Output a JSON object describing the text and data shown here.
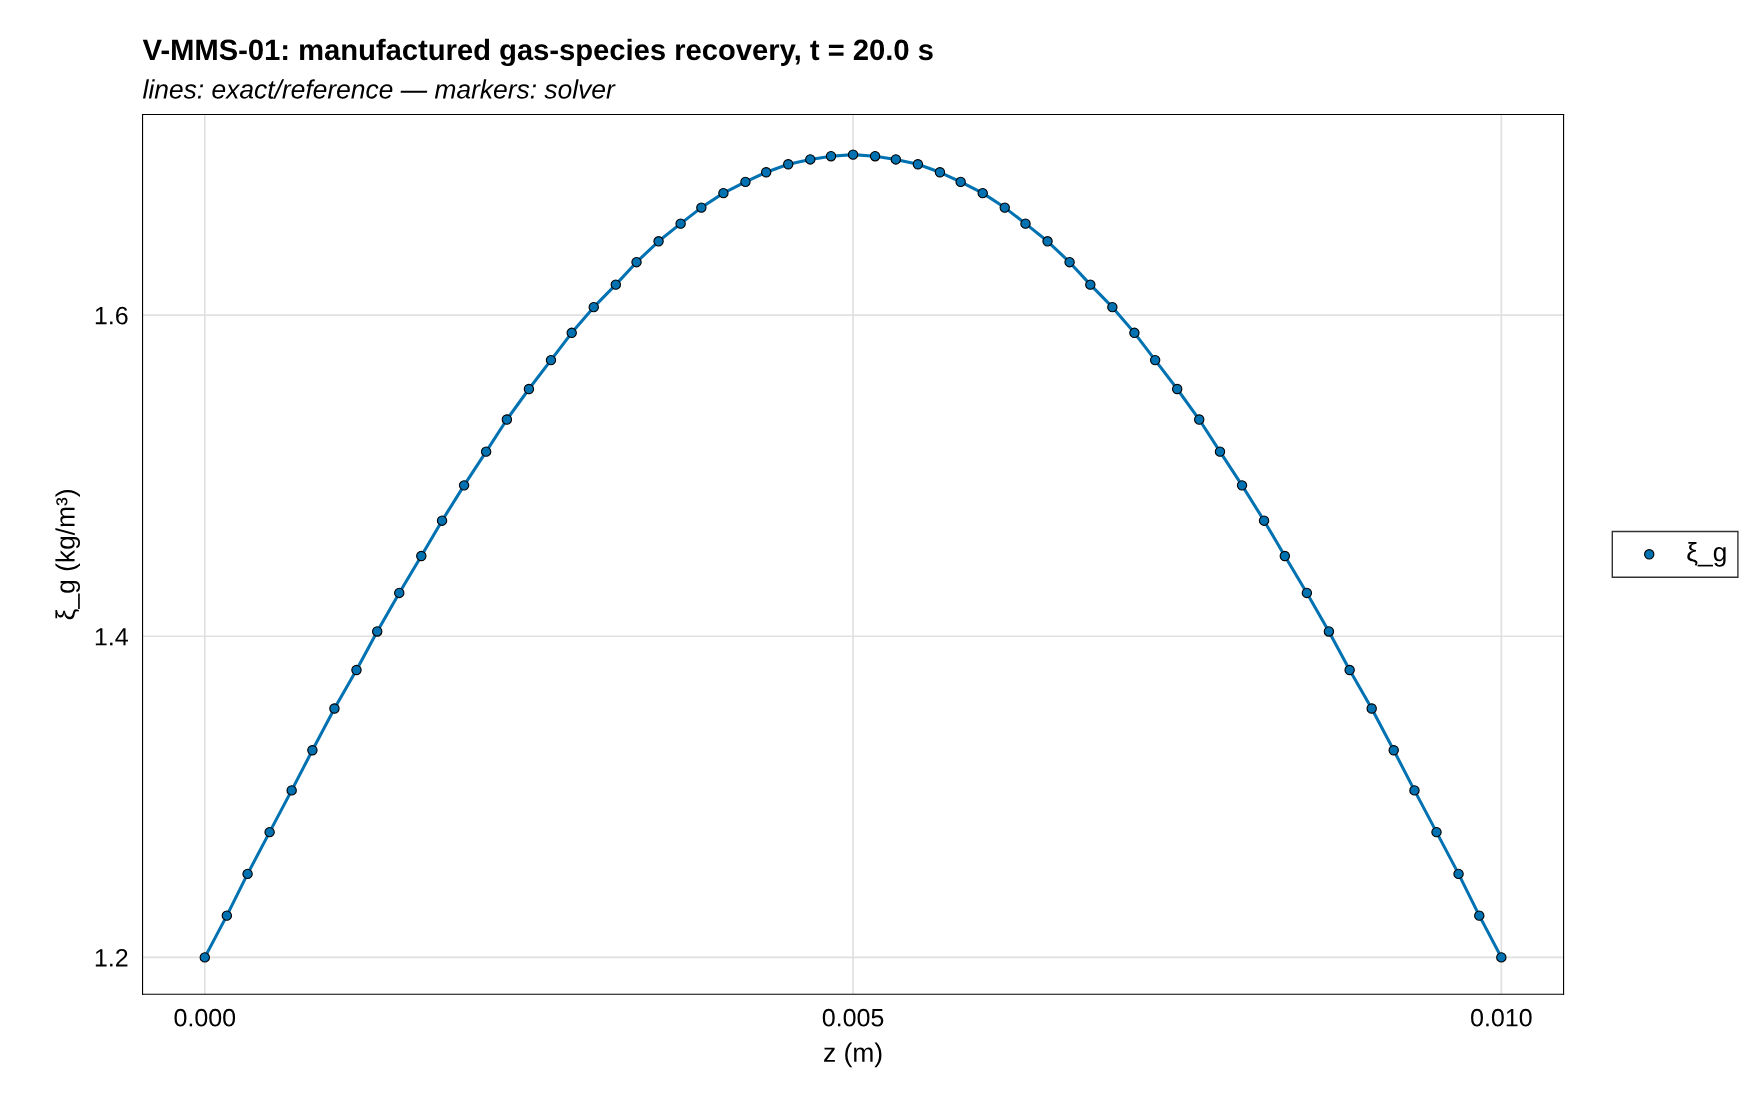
{
  "chart_data": {
    "type": "line",
    "title": "V-MMS-01: manufactured gas-species recovery, t = 20.0 s",
    "subtitle": "lines: exact/reference — markers: solver",
    "xlabel": "z (m)",
    "ylabel": "ξ_g (kg/m³)",
    "x": [
      0,
      0.00017,
      0.00033,
      0.0005,
      0.00067,
      0.00083,
      0.001,
      0.00117,
      0.00133,
      0.0015,
      0.00167,
      0.00183,
      0.002,
      0.00217,
      0.00233,
      0.0025,
      0.00267,
      0.00283,
      0.003,
      0.00317,
      0.00333,
      0.0035,
      0.00367,
      0.00383,
      0.004,
      0.00417,
      0.00433,
      0.0045,
      0.00467,
      0.00483,
      0.005,
      0.00517,
      0.00533,
      0.0055,
      0.00567,
      0.00583,
      0.006,
      0.00617,
      0.00633,
      0.0065,
      0.00667,
      0.00683,
      0.007,
      0.00717,
      0.00733,
      0.0075,
      0.00767,
      0.00783,
      0.008,
      0.00817,
      0.00833,
      0.0085,
      0.00867,
      0.00883,
      0.009,
      0.00917,
      0.00933,
      0.0095,
      0.00967,
      0.00983,
      0.01
    ],
    "series": [
      {
        "color": "#0072b2",
        "line_style": "solid",
        "values": [
          1.2,
          1.226,
          1.252,
          1.278,
          1.304,
          1.329,
          1.355,
          1.379,
          1.403,
          1.427,
          1.45,
          1.472,
          1.494,
          1.515,
          1.535,
          1.554,
          1.572,
          1.589,
          1.605,
          1.619,
          1.633,
          1.646,
          1.657,
          1.667,
          1.676,
          1.683,
          1.689,
          1.694,
          1.697,
          1.699,
          1.7,
          1.699,
          1.697,
          1.694,
          1.689,
          1.683,
          1.676,
          1.667,
          1.657,
          1.646,
          1.633,
          1.619,
          1.605,
          1.589,
          1.572,
          1.554,
          1.535,
          1.515,
          1.494,
          1.472,
          1.45,
          1.427,
          1.403,
          1.379,
          1.355,
          1.329,
          1.304,
          1.278,
          1.252,
          1.226,
          1.2
        ]
      },
      {
        "type": "scatter",
        "name": "ξ_g",
        "color": "#0072b2",
        "marker": "circle",
        "values": [
          1.2,
          1.226,
          1.252,
          1.278,
          1.304,
          1.329,
          1.355,
          1.379,
          1.403,
          1.427,
          1.45,
          1.472,
          1.494,
          1.515,
          1.535,
          1.554,
          1.572,
          1.589,
          1.605,
          1.619,
          1.633,
          1.646,
          1.657,
          1.667,
          1.676,
          1.683,
          1.689,
          1.694,
          1.697,
          1.699,
          1.7,
          1.699,
          1.697,
          1.694,
          1.689,
          1.683,
          1.676,
          1.667,
          1.657,
          1.646,
          1.633,
          1.619,
          1.605,
          1.589,
          1.572,
          1.554,
          1.535,
          1.515,
          1.494,
          1.472,
          1.45,
          1.427,
          1.403,
          1.379,
          1.355,
          1.329,
          1.304,
          1.278,
          1.252,
          1.226,
          1.2
        ]
      }
    ],
    "xlim": [
      -0.00048,
      0.01048
    ],
    "ylim": [
      1.177,
      1.725
    ],
    "xticks": [
      {
        "value": 0,
        "label": "0.000"
      },
      {
        "value": 0.005,
        "label": "0.005"
      },
      {
        "value": 0.01,
        "label": "0.010"
      }
    ],
    "yticks": [
      1.2,
      1.4,
      1.6
    ],
    "grid": true,
    "legend": "right"
  }
}
